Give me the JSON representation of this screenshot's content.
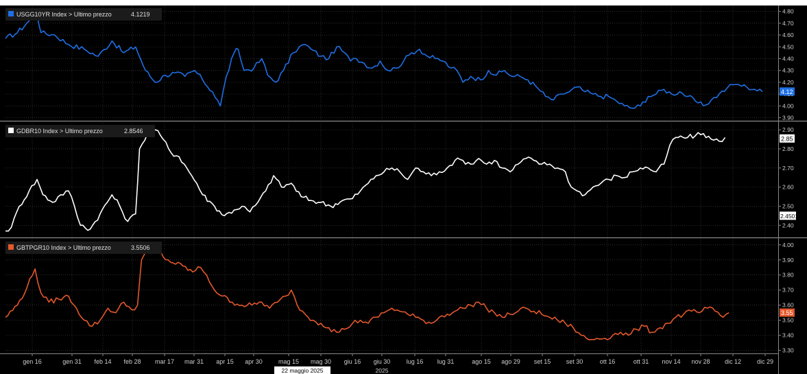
{
  "colors": {
    "background": "#000000",
    "grid": "#4a4a4a",
    "axis_text": "#cfcfcf",
    "us": "#1f6fe5",
    "de": "#ffffff",
    "it": "#e4582c"
  },
  "x_axis": {
    "ticks": [
      "gen 16",
      "gen 31",
      "feb 14",
      "feb 28",
      "mar 17",
      "mar 31",
      "apr 15",
      "apr 30",
      "mag 15",
      "mag 30",
      "giu 16",
      "giu 30",
      "lug 16",
      "lug 31",
      "ago 15",
      "ago 29",
      "set 15",
      "set 30",
      "ott 16",
      "ott 31",
      "nov 14",
      "nov 28",
      "dic 12",
      "dic 29"
    ],
    "cursor_label": "22 maggio 2025",
    "year_label": "2025"
  },
  "chart_data": [
    {
      "type": "line",
      "legend": "USGG10YR Index > Ultimo prezzo",
      "last_value_text": "4.1219",
      "last_tag": "4.12",
      "ylim": [
        3.88,
        4.85
      ],
      "yticks": [
        "3.90",
        "4.00",
        "4.10",
        "4.20",
        "4.30",
        "4.40",
        "4.50",
        "4.60",
        "4.70",
        "4.80"
      ],
      "grid": true,
      "anchors": [
        [
          0,
          4.57
        ],
        [
          6,
          4.62
        ],
        [
          12,
          4.72
        ],
        [
          16,
          4.78
        ],
        [
          18,
          4.62
        ],
        [
          25,
          4.6
        ],
        [
          32,
          4.52
        ],
        [
          40,
          4.48
        ],
        [
          47,
          4.42
        ],
        [
          54,
          4.55
        ],
        [
          60,
          4.45
        ],
        [
          66,
          4.5
        ],
        [
          71,
          4.3
        ],
        [
          76,
          4.2
        ],
        [
          81,
          4.26
        ],
        [
          86,
          4.28
        ],
        [
          91,
          4.25
        ],
        [
          96,
          4.3
        ],
        [
          100,
          4.22
        ],
        [
          105,
          4.12
        ],
        [
          109,
          4.0
        ],
        [
          112,
          4.25
        ],
        [
          116,
          4.45
        ],
        [
          118,
          4.48
        ],
        [
          121,
          4.3
        ],
        [
          126,
          4.32
        ],
        [
          130,
          4.4
        ],
        [
          133,
          4.26
        ],
        [
          137,
          4.2
        ],
        [
          141,
          4.3
        ],
        [
          146,
          4.45
        ],
        [
          149,
          4.5
        ],
        [
          152,
          4.52
        ],
        [
          155,
          4.48
        ],
        [
          160,
          4.42
        ],
        [
          164,
          4.4
        ],
        [
          168,
          4.5
        ],
        [
          172,
          4.45
        ],
        [
          175,
          4.38
        ],
        [
          178,
          4.4
        ],
        [
          182,
          4.36
        ],
        [
          186,
          4.32
        ],
        [
          190,
          4.38
        ],
        [
          194,
          4.3
        ],
        [
          198,
          4.32
        ],
        [
          202,
          4.38
        ],
        [
          206,
          4.45
        ],
        [
          210,
          4.48
        ],
        [
          214,
          4.42
        ],
        [
          218,
          4.4
        ],
        [
          222,
          4.38
        ],
        [
          226,
          4.32
        ],
        [
          229,
          4.3
        ],
        [
          232,
          4.2
        ],
        [
          236,
          4.25
        ],
        [
          241,
          4.22
        ],
        [
          245,
          4.3
        ],
        [
          249,
          4.26
        ],
        [
          253,
          4.3
        ],
        [
          257,
          4.25
        ],
        [
          261,
          4.25
        ],
        [
          265,
          4.22
        ],
        [
          270,
          4.15
        ],
        [
          274,
          4.08
        ],
        [
          278,
          4.05
        ],
        [
          282,
          4.1
        ],
        [
          286,
          4.12
        ],
        [
          290,
          4.16
        ],
        [
          294,
          4.12
        ],
        [
          298,
          4.1
        ],
        [
          302,
          4.08
        ],
        [
          306,
          4.08
        ],
        [
          310,
          4.04
        ],
        [
          314,
          4.0
        ],
        [
          318,
          3.98
        ],
        [
          322,
          4.0
        ],
        [
          326,
          4.08
        ],
        [
          330,
          4.1
        ],
        [
          334,
          4.14
        ],
        [
          338,
          4.1
        ],
        [
          342,
          4.12
        ],
        [
          346,
          4.08
        ],
        [
          350,
          4.04
        ],
        [
          354,
          4.0
        ],
        [
          358,
          4.05
        ],
        [
          362,
          4.1
        ],
        [
          366,
          4.15
        ],
        [
          369,
          4.18
        ],
        [
          372,
          4.18
        ],
        [
          376,
          4.16
        ],
        [
          380,
          4.14
        ],
        [
          384,
          4.12
        ]
      ]
    },
    {
      "type": "line",
      "legend": "GDBR10 Index > Ultimo prezzo",
      "last_value_text": "2.8546",
      "last_tag": "2.85",
      "aux_tag": "2.4501",
      "ylim": [
        2.34,
        2.94
      ],
      "yticks": [
        "2.40",
        "2.50",
        "2.60",
        "2.70",
        "2.80",
        "2.90"
      ],
      "grid": true,
      "anchors": [
        [
          0,
          2.37
        ],
        [
          3,
          2.39
        ],
        [
          7,
          2.5
        ],
        [
          12,
          2.58
        ],
        [
          16,
          2.64
        ],
        [
          19,
          2.56
        ],
        [
          24,
          2.52
        ],
        [
          28,
          2.56
        ],
        [
          32,
          2.58
        ],
        [
          35,
          2.5
        ],
        [
          38,
          2.4
        ],
        [
          43,
          2.38
        ],
        [
          48,
          2.46
        ],
        [
          54,
          2.56
        ],
        [
          58,
          2.5
        ],
        [
          62,
          2.42
        ],
        [
          66,
          2.46
        ],
        [
          68,
          2.8
        ],
        [
          72,
          2.88
        ],
        [
          76,
          2.9
        ],
        [
          80,
          2.85
        ],
        [
          84,
          2.78
        ],
        [
          88,
          2.76
        ],
        [
          92,
          2.7
        ],
        [
          97,
          2.62
        ],
        [
          100,
          2.56
        ],
        [
          106,
          2.5
        ],
        [
          111,
          2.45
        ],
        [
          116,
          2.48
        ],
        [
          120,
          2.5
        ],
        [
          124,
          2.47
        ],
        [
          128,
          2.52
        ],
        [
          132,
          2.58
        ],
        [
          136,
          2.66
        ],
        [
          140,
          2.6
        ],
        [
          145,
          2.62
        ],
        [
          150,
          2.55
        ],
        [
          155,
          2.53
        ],
        [
          160,
          2.52
        ],
        [
          165,
          2.5
        ],
        [
          171,
          2.53
        ],
        [
          176,
          2.54
        ],
        [
          180,
          2.58
        ],
        [
          184,
          2.62
        ],
        [
          188,
          2.66
        ],
        [
          192,
          2.68
        ],
        [
          196,
          2.7
        ],
        [
          200,
          2.68
        ],
        [
          204,
          2.64
        ],
        [
          208,
          2.7
        ],
        [
          212,
          2.68
        ],
        [
          216,
          2.66
        ],
        [
          220,
          2.68
        ],
        [
          224,
          2.7
        ],
        [
          228,
          2.74
        ],
        [
          232,
          2.74
        ],
        [
          236,
          2.72
        ],
        [
          240,
          2.75
        ],
        [
          244,
          2.72
        ],
        [
          248,
          2.74
        ],
        [
          252,
          2.7
        ],
        [
          256,
          2.68
        ],
        [
          260,
          2.72
        ],
        [
          264,
          2.75
        ],
        [
          268,
          2.74
        ],
        [
          272,
          2.72
        ],
        [
          276,
          2.72
        ],
        [
          280,
          2.7
        ],
        [
          284,
          2.68
        ],
        [
          287,
          2.6
        ],
        [
          290,
          2.58
        ],
        [
          294,
          2.56
        ],
        [
          298,
          2.6
        ],
        [
          302,
          2.62
        ],
        [
          306,
          2.64
        ],
        [
          310,
          2.66
        ],
        [
          314,
          2.65
        ],
        [
          318,
          2.68
        ],
        [
          322,
          2.7
        ],
        [
          326,
          2.7
        ],
        [
          330,
          2.68
        ],
        [
          334,
          2.72
        ],
        [
          337,
          2.82
        ],
        [
          340,
          2.86
        ],
        [
          346,
          2.86
        ],
        [
          350,
          2.87
        ],
        [
          354,
          2.88
        ],
        [
          358,
          2.85
        ],
        [
          362,
          2.84
        ],
        [
          365,
          2.86
        ]
      ]
    },
    {
      "type": "line",
      "legend": "GBTPGR10 Index > Ultimo prezzo",
      "last_value_text": "3.5506",
      "last_tag": "3.55",
      "ylim": [
        3.28,
        4.04
      ],
      "yticks": [
        "3.30",
        "3.40",
        "3.50",
        "3.60",
        "3.70",
        "3.80",
        "3.90",
        "4.00"
      ],
      "grid": true,
      "anchors": [
        [
          0,
          3.52
        ],
        [
          6,
          3.6
        ],
        [
          11,
          3.72
        ],
        [
          15,
          3.84
        ],
        [
          18,
          3.68
        ],
        [
          22,
          3.62
        ],
        [
          27,
          3.64
        ],
        [
          32,
          3.66
        ],
        [
          36,
          3.58
        ],
        [
          40,
          3.5
        ],
        [
          44,
          3.46
        ],
        [
          48,
          3.5
        ],
        [
          52,
          3.58
        ],
        [
          56,
          3.55
        ],
        [
          60,
          3.62
        ],
        [
          64,
          3.57
        ],
        [
          67,
          3.6
        ],
        [
          69,
          3.9
        ],
        [
          72,
          3.96
        ],
        [
          76,
          4.0
        ],
        [
          80,
          3.92
        ],
        [
          85,
          3.88
        ],
        [
          90,
          3.86
        ],
        [
          95,
          3.82
        ],
        [
          99,
          3.85
        ],
        [
          102,
          3.8
        ],
        [
          106,
          3.7
        ],
        [
          110,
          3.66
        ],
        [
          115,
          3.62
        ],
        [
          120,
          3.6
        ],
        [
          125,
          3.6
        ],
        [
          130,
          3.62
        ],
        [
          134,
          3.58
        ],
        [
          138,
          3.62
        ],
        [
          142,
          3.66
        ],
        [
          145,
          3.7
        ],
        [
          148,
          3.6
        ],
        [
          152,
          3.54
        ],
        [
          156,
          3.5
        ],
        [
          160,
          3.48
        ],
        [
          164,
          3.45
        ],
        [
          168,
          3.42
        ],
        [
          172,
          3.44
        ],
        [
          176,
          3.48
        ],
        [
          180,
          3.5
        ],
        [
          184,
          3.48
        ],
        [
          188,
          3.52
        ],
        [
          192,
          3.55
        ],
        [
          196,
          3.58
        ],
        [
          200,
          3.56
        ],
        [
          204,
          3.54
        ],
        [
          208,
          3.52
        ],
        [
          212,
          3.5
        ],
        [
          216,
          3.48
        ],
        [
          220,
          3.52
        ],
        [
          224,
          3.54
        ],
        [
          228,
          3.56
        ],
        [
          232,
          3.58
        ],
        [
          236,
          3.6
        ],
        [
          240,
          3.62
        ],
        [
          244,
          3.58
        ],
        [
          248,
          3.55
        ],
        [
          252,
          3.52
        ],
        [
          256,
          3.54
        ],
        [
          260,
          3.56
        ],
        [
          264,
          3.58
        ],
        [
          268,
          3.56
        ],
        [
          272,
          3.54
        ],
        [
          276,
          3.52
        ],
        [
          280,
          3.5
        ],
        [
          284,
          3.48
        ],
        [
          288,
          3.45
        ],
        [
          292,
          3.4
        ],
        [
          296,
          3.37
        ],
        [
          300,
          3.38
        ],
        [
          304,
          3.38
        ],
        [
          308,
          3.4
        ],
        [
          312,
          3.42
        ],
        [
          316,
          3.4
        ],
        [
          320,
          3.44
        ],
        [
          324,
          3.46
        ],
        [
          328,
          3.42
        ],
        [
          332,
          3.45
        ],
        [
          336,
          3.48
        ],
        [
          340,
          3.52
        ],
        [
          344,
          3.54
        ],
        [
          348,
          3.56
        ],
        [
          352,
          3.55
        ],
        [
          356,
          3.58
        ],
        [
          360,
          3.56
        ],
        [
          364,
          3.52
        ],
        [
          367,
          3.55
        ]
      ]
    }
  ]
}
